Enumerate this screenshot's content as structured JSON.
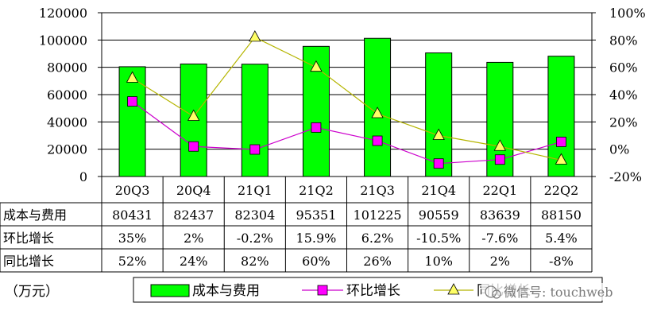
{
  "chart_data": {
    "type": "bar",
    "categories": [
      "20Q3",
      "20Q4",
      "21Q1",
      "21Q2",
      "21Q3",
      "21Q4",
      "22Q1",
      "22Q2"
    ],
    "series": [
      {
        "name": "成本与费用",
        "type": "bar",
        "axis": "left",
        "color": "#00ff00",
        "values": [
          80431,
          82437,
          82304,
          95351,
          101225,
          90559,
          83639,
          88150
        ]
      },
      {
        "name": "环比增长",
        "type": "line",
        "axis": "right",
        "color": "#cc00cc",
        "marker": "square",
        "marker_color": "#ff00ff",
        "values": [
          35,
          2,
          -0.2,
          15.9,
          6.2,
          -10.5,
          -7.6,
          5.4
        ]
      },
      {
        "name": "同比增长",
        "type": "line",
        "axis": "right",
        "color": "#b5b500",
        "marker": "triangle",
        "marker_color": "#ffff66",
        "values": [
          52,
          24,
          82,
          60,
          26,
          10,
          2,
          -8
        ]
      }
    ],
    "y_left": {
      "min": 0,
      "max": 120000,
      "ticks": [
        "0",
        "20000",
        "40000",
        "60000",
        "80000",
        "100000",
        "120000"
      ]
    },
    "y_right": {
      "min": -20,
      "max": 100,
      "ticks": [
        "-20%",
        "0%",
        "20%",
        "40%",
        "60%",
        "80%",
        "100%"
      ]
    },
    "grid": true,
    "table": {
      "rows": [
        {
          "label": "成本与费用",
          "cells": [
            "80431",
            "82437",
            "82304",
            "95351",
            "101225",
            "90559",
            "83639",
            "88150"
          ]
        },
        {
          "label": "环比增长",
          "cells": [
            "35%",
            "2%",
            "-0.2%",
            "15.9%",
            "6.2%",
            "-10.5%",
            "-7.6%",
            "5.4%"
          ]
        },
        {
          "label": "同比增长",
          "cells": [
            "52%",
            "24%",
            "82%",
            "60%",
            "26%",
            "10%",
            "2%",
            "-8%"
          ]
        }
      ]
    },
    "legend_position": "bottom",
    "unit_label": "（万元）",
    "watermark": "微信号: touchweb"
  }
}
